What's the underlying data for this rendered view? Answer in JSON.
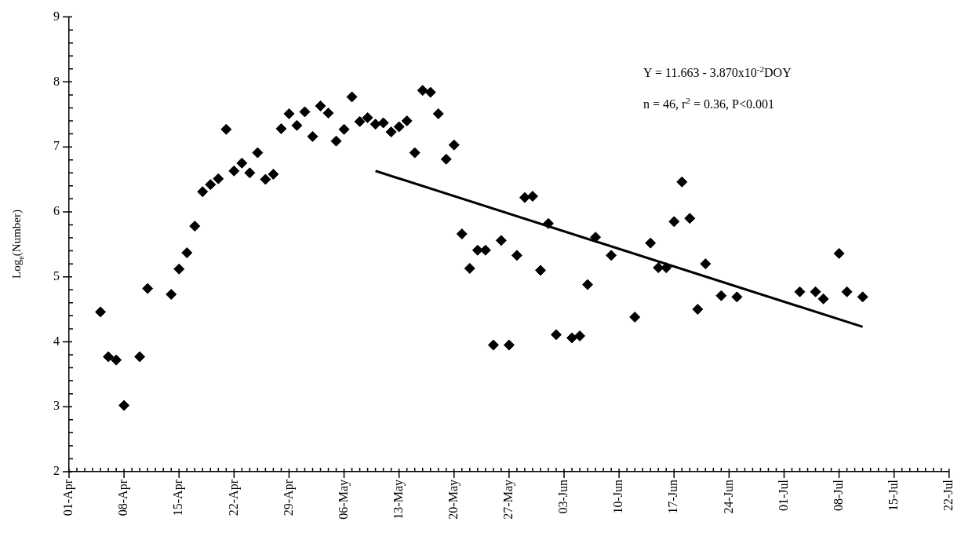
{
  "chart_data": {
    "type": "scatter",
    "ylabel": "Log$_{e}$(Number)",
    "annotations": [
      "Y = 11.663 - 3.870x10$^{-2}$DOY",
      "n = 46, r$^{2}$ = 0.36, P<0.001"
    ],
    "xlim": [
      "--04-01",
      "--07-22"
    ],
    "xticks": [
      {
        "value": "--04-01",
        "label": "01-Apr"
      },
      {
        "value": "--04-02",
        "label": null
      },
      {
        "value": "--04-03",
        "label": null
      },
      {
        "value": "--04-04",
        "label": null
      },
      {
        "value": "--04-05",
        "label": null
      },
      {
        "value": "--04-06",
        "label": null
      },
      {
        "value": "--04-07",
        "label": null
      },
      {
        "value": "--04-08",
        "label": "08-Apr"
      },
      {
        "value": "--04-09",
        "label": null
      },
      {
        "value": "--04-10",
        "label": null
      },
      {
        "value": "--04-11",
        "label": null
      },
      {
        "value": "--04-12",
        "label": null
      },
      {
        "value": "--04-13",
        "label": null
      },
      {
        "value": "--04-14",
        "label": null
      },
      {
        "value": "--04-15",
        "label": "15-Apr"
      },
      {
        "value": "--04-16",
        "label": null
      },
      {
        "value": "--04-17",
        "label": null
      },
      {
        "value": "--04-18",
        "label": null
      },
      {
        "value": "--04-19",
        "label": null
      },
      {
        "value": "--04-20",
        "label": null
      },
      {
        "value": "--04-21",
        "label": null
      },
      {
        "value": "--04-22",
        "label": "22-Apr"
      },
      {
        "value": "--04-23",
        "label": null
      },
      {
        "value": "--04-24",
        "label": null
      },
      {
        "value": "--04-25",
        "label": null
      },
      {
        "value": "--04-26",
        "label": null
      },
      {
        "value": "--04-27",
        "label": null
      },
      {
        "value": "--04-28",
        "label": null
      },
      {
        "value": "--04-29",
        "label": "29-Apr"
      },
      {
        "value": "--04-30",
        "label": null
      },
      {
        "value": "--05-01",
        "label": null
      },
      {
        "value": "--05-02",
        "label": null
      },
      {
        "value": "--05-03",
        "label": null
      },
      {
        "value": "--05-04",
        "label": null
      },
      {
        "value": "--05-05",
        "label": null
      },
      {
        "value": "--05-06",
        "label": "06-May"
      },
      {
        "value": "--05-07",
        "label": null
      },
      {
        "value": "--05-08",
        "label": null
      },
      {
        "value": "--05-09",
        "label": null
      },
      {
        "value": "--05-10",
        "label": null
      },
      {
        "value": "--05-11",
        "label": null
      },
      {
        "value": "--05-12",
        "label": null
      },
      {
        "value": "--05-13",
        "label": "13-May"
      },
      {
        "value": "--05-14",
        "label": null
      },
      {
        "value": "--05-15",
        "label": null
      },
      {
        "value": "--05-16",
        "label": null
      },
      {
        "value": "--05-17",
        "label": null
      },
      {
        "value": "--05-18",
        "label": null
      },
      {
        "value": "--05-19",
        "label": null
      },
      {
        "value": "--05-20",
        "label": "20-May"
      },
      {
        "value": "--05-21",
        "label": null
      },
      {
        "value": "--05-22",
        "label": null
      },
      {
        "value": "--05-23",
        "label": null
      },
      {
        "value": "--05-24",
        "label": null
      },
      {
        "value": "--05-25",
        "label": null
      },
      {
        "value": "--05-26",
        "label": null
      },
      {
        "value": "--05-27",
        "label": "27-May"
      },
      {
        "value": "--05-28",
        "label": null
      },
      {
        "value": "--05-29",
        "label": null
      },
      {
        "value": "--05-30",
        "label": null
      },
      {
        "value": "--05-31",
        "label": null
      },
      {
        "value": "--06-01",
        "label": null
      },
      {
        "value": "--06-02",
        "label": null
      },
      {
        "value": "--06-03",
        "label": "03-Jun"
      },
      {
        "value": "--06-04",
        "label": null
      },
      {
        "value": "--06-05",
        "label": null
      },
      {
        "value": "--06-06",
        "label": null
      },
      {
        "value": "--06-07",
        "label": null
      },
      {
        "value": "--06-08",
        "label": null
      },
      {
        "value": "--06-09",
        "label": null
      },
      {
        "value": "--06-10",
        "label": "10-Jun"
      },
      {
        "value": "--06-11",
        "label": null
      },
      {
        "value": "--06-12",
        "label": null
      },
      {
        "value": "--06-13",
        "label": null
      },
      {
        "value": "--06-14",
        "label": null
      },
      {
        "value": "--06-15",
        "label": null
      },
      {
        "value": "--06-16",
        "label": null
      },
      {
        "value": "--06-17",
        "label": "17-Jun"
      },
      {
        "value": "--06-18",
        "label": null
      },
      {
        "value": "--06-19",
        "label": null
      },
      {
        "value": "--06-20",
        "label": null
      },
      {
        "value": "--06-21",
        "label": null
      },
      {
        "value": "--06-22",
        "label": null
      },
      {
        "value": "--06-23",
        "label": null
      },
      {
        "value": "--06-24",
        "label": "24-Jun"
      },
      {
        "value": "--06-25",
        "label": null
      },
      {
        "value": "--06-26",
        "label": null
      },
      {
        "value": "--06-27",
        "label": null
      },
      {
        "value": "--06-28",
        "label": null
      },
      {
        "value": "--06-29",
        "label": null
      },
      {
        "value": "--06-30",
        "label": null
      },
      {
        "value": "--07-01",
        "label": "01-Jul"
      },
      {
        "value": "--07-02",
        "label": null
      },
      {
        "value": "--07-03",
        "label": null
      },
      {
        "value": "--07-04",
        "label": null
      },
      {
        "value": "--07-05",
        "label": null
      },
      {
        "value": "--07-06",
        "label": null
      },
      {
        "value": "--07-07",
        "label": null
      },
      {
        "value": "--07-08",
        "label": "08-Jul"
      },
      {
        "value": "--07-09",
        "label": null
      },
      {
        "value": "--07-10",
        "label": null
      },
      {
        "value": "--07-11",
        "label": null
      },
      {
        "value": "--07-12",
        "label": null
      },
      {
        "value": "--07-13",
        "label": null
      },
      {
        "value": "--07-14",
        "label": null
      },
      {
        "value": "--07-15",
        "label": "15-Jul"
      },
      {
        "value": "--07-16",
        "label": null
      },
      {
        "value": "--07-17",
        "label": null
      },
      {
        "value": "--07-18",
        "label": null
      },
      {
        "value": "--07-19",
        "label": null
      },
      {
        "value": "--07-20",
        "label": null
      },
      {
        "value": "--07-21",
        "label": null
      },
      {
        "value": "--07-22",
        "label": "22-Jul"
      }
    ],
    "ylim": [
      2,
      9
    ],
    "yticks": [
      2,
      {
        "value": 2.2,
        "label": null
      },
      {
        "value": 2.4,
        "label": null
      },
      {
        "value": 2.6,
        "label": null
      },
      {
        "value": 2.8,
        "label": null
      },
      3,
      {
        "value": 3.2,
        "label": null
      },
      {
        "value": 3.4,
        "label": null
      },
      {
        "value": 3.6,
        "label": null
      },
      {
        "value": 3.8,
        "label": null
      },
      4,
      {
        "value": 4.2,
        "label": null
      },
      {
        "value": 4.4,
        "label": null
      },
      {
        "value": 4.6,
        "label": null
      },
      {
        "value": 4.8,
        "label": null
      },
      5,
      {
        "value": 5.2,
        "label": null
      },
      {
        "value": 5.4,
        "label": null
      },
      {
        "value": 5.6,
        "label": null
      },
      {
        "value": 5.8,
        "label": null
      },
      6,
      {
        "value": 6.2,
        "label": null
      },
      {
        "value": 6.4,
        "label": null
      },
      {
        "value": 6.6,
        "label": null
      },
      {
        "value": 6.8,
        "label": null
      },
      7,
      {
        "value": 7.2,
        "label": null
      },
      {
        "value": 7.4,
        "label": null
      },
      {
        "value": 7.6,
        "label": null
      },
      {
        "value": 7.8,
        "label": null
      },
      8,
      {
        "value": 8.2,
        "label": null
      },
      {
        "value": 8.4,
        "label": null
      },
      {
        "value": 8.6,
        "label": null
      },
      {
        "value": 8.8,
        "label": null
      },
      9
    ],
    "series": [
      {
        "type": "scatter",
        "color": "#000000",
        "marker": "diamond",
        "x": [
          "--04-05",
          "--04-06",
          "--04-07",
          "--04-08",
          "--04-10",
          "--04-11",
          "--04-14",
          "--04-15",
          "--04-16",
          "--04-17",
          "--04-18",
          "--04-19",
          "--04-20",
          "--04-21",
          "--04-22",
          "--04-23",
          "--04-24",
          "--04-25",
          "--04-26",
          "--04-27",
          "--04-28",
          "--04-29",
          "--04-30",
          "--05-01",
          "--05-02",
          "--05-03",
          "--05-04",
          "--05-05",
          "--05-06",
          "--05-07",
          "--05-08",
          "--05-09",
          "--05-10",
          "--05-11",
          "--05-12",
          "--05-13",
          "--05-14",
          "--05-15",
          "--05-16",
          "--05-17",
          "--05-18",
          "--05-19",
          "--05-20",
          "--05-21",
          "--05-22",
          "--05-23",
          "--05-24",
          "--05-25",
          "--05-26",
          "--05-27",
          "--05-28",
          "--05-29",
          "--05-30",
          "--05-31",
          "--06-01",
          "--06-02",
          "--06-04",
          "--06-05",
          "--06-06",
          "--06-07",
          "--06-09",
          "--06-12",
          "--06-14",
          "--06-15",
          "--06-16",
          "--06-17",
          "--06-18",
          "--06-19",
          "--06-20",
          "--06-21",
          "--06-23",
          "--06-25",
          "--07-03",
          "--07-05",
          "--07-06",
          "--07-08",
          "--07-09",
          "--07-11"
        ],
        "values": [
          4.46,
          3.77,
          3.72,
          3.02,
          3.77,
          4.82,
          4.73,
          5.12,
          5.37,
          5.78,
          6.31,
          6.42,
          6.51,
          7.27,
          6.63,
          6.75,
          6.6,
          6.91,
          6.5,
          6.58,
          7.28,
          7.51,
          7.33,
          7.54,
          7.16,
          7.63,
          7.52,
          7.09,
          7.27,
          7.77,
          7.39,
          7.45,
          7.35,
          7.37,
          7.23,
          7.31,
          7.4,
          6.91,
          7.87,
          7.84,
          7.51,
          6.81,
          7.03,
          5.66,
          5.13,
          5.41,
          5.41,
          3.95,
          5.56,
          3.95,
          5.33,
          6.22,
          6.24,
          5.1,
          5.82,
          4.11,
          4.06,
          4.09,
          4.88,
          5.61,
          5.33,
          4.38,
          5.52,
          5.14,
          5.14,
          5.85,
          6.46,
          5.9,
          4.5,
          5.2,
          4.71,
          4.69,
          4.77,
          4.77,
          4.66,
          5.36,
          4.77,
          4.69
        ]
      },
      {
        "type": "line",
        "color": "#000000",
        "marker": "none",
        "line_style": "solid",
        "x": [
          "--05-10",
          "--07-11"
        ],
        "values": [
          6.63,
          4.23
        ]
      }
    ]
  }
}
